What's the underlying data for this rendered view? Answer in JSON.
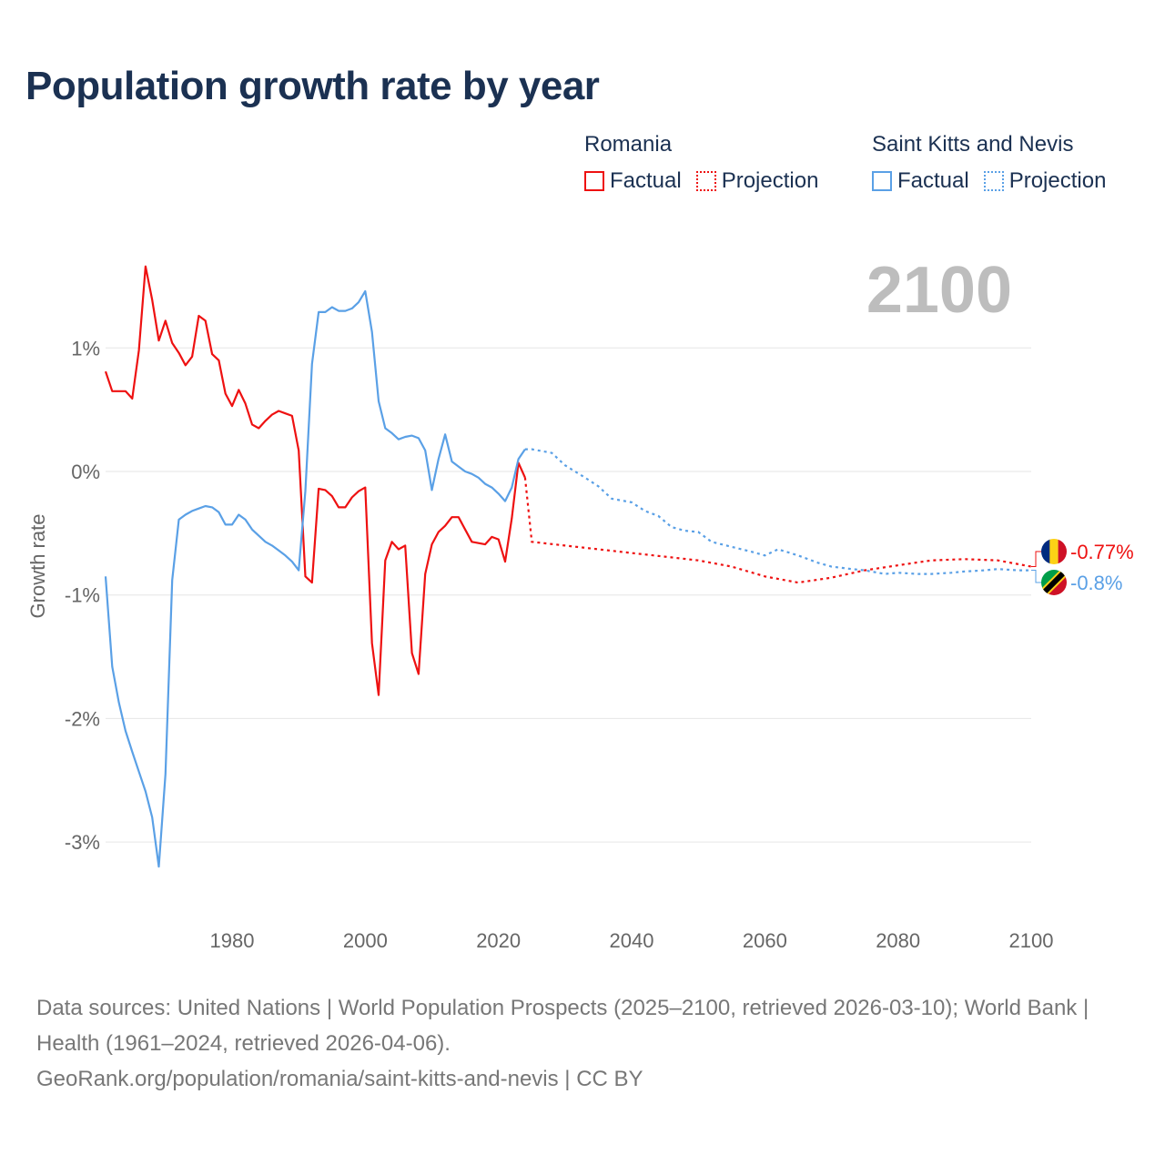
{
  "title": "Population growth rate by year",
  "legend": {
    "groups": [
      {
        "name": "Romania",
        "color": "#ee1111",
        "factual": "Factual",
        "projection": "Projection"
      },
      {
        "name": "Saint Kitts and Nevis",
        "color": "#5aa0e6",
        "factual": "Factual",
        "projection": "Projection"
      }
    ]
  },
  "year_label": "2100",
  "source": {
    "line1": "Data sources: United Nations | World Population Prospects (2025–2100, retrieved 2026-03-10); World Bank | Health (1961–2024, retrieved 2026-04-06).",
    "line2": "GeoRank.org/population/romania/saint-kitts-and-nevis | CC BY"
  },
  "chart_data": {
    "type": "line",
    "title": "Population growth rate by year",
    "xlabel": "",
    "ylabel": "Growth rate",
    "xlim": [
      1961,
      2100
    ],
    "ylim": [
      -3.5,
      1.8
    ],
    "x_ticks": [
      1980,
      2000,
      2020,
      2040,
      2060,
      2080,
      2100
    ],
    "y_ticks": [
      1,
      0,
      -1,
      -2,
      -3
    ],
    "y_tick_labels": [
      "1%",
      "0%",
      "-1%",
      "-2%",
      "-3%"
    ],
    "grid": true,
    "legend_position": "top-right",
    "series": [
      {
        "name": "Romania",
        "color": "#ee1111",
        "end_label": "-0.77%",
        "factual": {
          "start_year": 1961,
          "values": [
            0.81,
            0.65,
            0.65,
            0.65,
            0.59,
            0.98,
            1.66,
            1.39,
            1.06,
            1.22,
            1.04,
            0.96,
            0.86,
            0.93,
            1.26,
            1.22,
            0.95,
            0.9,
            0.63,
            0.53,
            0.66,
            0.55,
            0.38,
            0.35,
            0.41,
            0.46,
            0.49,
            0.47,
            0.45,
            0.17,
            -0.85,
            -0.9,
            -0.14,
            -0.15,
            -0.2,
            -0.29,
            -0.29,
            -0.21,
            -0.16,
            -0.13,
            -1.39,
            -1.81,
            -0.72,
            -0.57,
            -0.63,
            -0.6,
            -1.47,
            -1.64,
            -0.83,
            -0.59,
            -0.49,
            -0.44,
            -0.37,
            -0.37,
            -0.47,
            -0.57,
            -0.58,
            -0.59,
            -0.53,
            -0.55,
            -0.73,
            -0.38,
            0.07,
            -0.05
          ]
        },
        "projection": {
          "x": [
            2024,
            2025,
            2030,
            2035,
            2040,
            2045,
            2050,
            2055,
            2060,
            2065,
            2070,
            2075,
            2080,
            2085,
            2090,
            2095,
            2100
          ],
          "values": [
            -0.05,
            -0.57,
            -0.6,
            -0.63,
            -0.66,
            -0.69,
            -0.72,
            -0.77,
            -0.85,
            -0.9,
            -0.86,
            -0.8,
            -0.76,
            -0.72,
            -0.71,
            -0.72,
            -0.77
          ]
        }
      },
      {
        "name": "Saint Kitts and Nevis",
        "color": "#5aa0e6",
        "end_label": "-0.8%",
        "factual": {
          "start_year": 1961,
          "values": [
            -0.85,
            -1.58,
            -1.87,
            -2.1,
            -2.27,
            -2.43,
            -2.59,
            -2.8,
            -3.2,
            -2.45,
            -0.88,
            -0.39,
            -0.35,
            -0.32,
            -0.3,
            -0.28,
            -0.29,
            -0.33,
            -0.43,
            -0.43,
            -0.35,
            -0.39,
            -0.47,
            -0.52,
            -0.57,
            -0.6,
            -0.64,
            -0.68,
            -0.73,
            -0.8,
            -0.16,
            0.87,
            1.29,
            1.29,
            1.33,
            1.3,
            1.3,
            1.32,
            1.37,
            1.46,
            1.13,
            0.57,
            0.35,
            0.31,
            0.26,
            0.28,
            0.29,
            0.27,
            0.17,
            -0.15,
            0.1,
            0.3,
            0.08,
            0.04,
            0.0,
            -0.02,
            -0.05,
            -0.1,
            -0.13,
            -0.18,
            -0.24,
            -0.13,
            0.1,
            0.18
          ]
        },
        "projection": {
          "x": [
            2024,
            2025,
            2028,
            2030,
            2033,
            2035,
            2037,
            2040,
            2042,
            2044,
            2046,
            2048,
            2050,
            2052,
            2055,
            2058,
            2060,
            2062,
            2065,
            2068,
            2070,
            2073,
            2075,
            2078,
            2080,
            2083,
            2085,
            2088,
            2090,
            2093,
            2095,
            2098,
            2100
          ],
          "values": [
            0.18,
            0.18,
            0.15,
            0.05,
            -0.05,
            -0.12,
            -0.22,
            -0.25,
            -0.32,
            -0.36,
            -0.45,
            -0.48,
            -0.49,
            -0.57,
            -0.61,
            -0.65,
            -0.68,
            -0.63,
            -0.68,
            -0.74,
            -0.77,
            -0.79,
            -0.8,
            -0.83,
            -0.82,
            -0.83,
            -0.83,
            -0.82,
            -0.81,
            -0.8,
            -0.79,
            -0.8,
            -0.8
          ]
        }
      }
    ]
  }
}
